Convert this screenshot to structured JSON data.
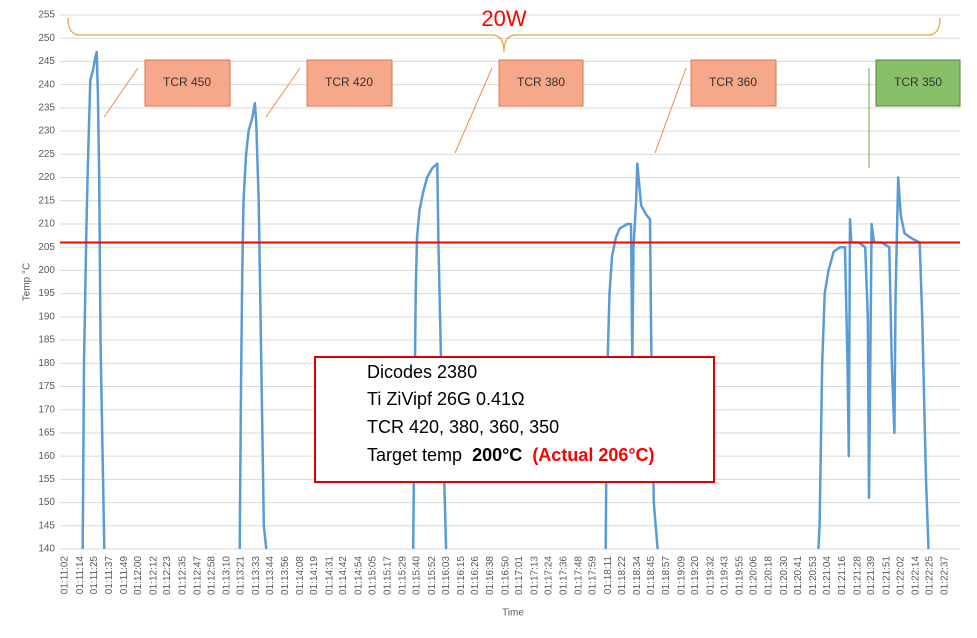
{
  "chart_data": {
    "type": "line",
    "ylabel": "Temp °C",
    "xlabel": "Time",
    "ylim": [
      140,
      255
    ],
    "yticks": [
      140,
      145,
      150,
      155,
      160,
      165,
      170,
      175,
      180,
      185,
      190,
      195,
      200,
      205,
      210,
      215,
      220,
      225,
      230,
      235,
      240,
      245,
      250,
      255
    ],
    "xlim": [
      "01:11:02",
      "01:22:37"
    ],
    "xticks": [
      "01:11:02",
      "01:11:14",
      "01:11:25",
      "01:11:37",
      "01:11:49",
      "01:12:00",
      "01:12:12",
      "01:12:23",
      "01:12:35",
      "01:12:47",
      "01:12:58",
      "01:13:10",
      "01:13:21",
      "01:13:33",
      "01:13:44",
      "01:13:56",
      "01:14:08",
      "01:14:19",
      "01:14:31",
      "01:14:42",
      "01:14:54",
      "01:15:05",
      "01:15:17",
      "01:15:29",
      "01:15:40",
      "01:15:52",
      "01:16:03",
      "01:16:15",
      "01:16:26",
      "01:16:38",
      "01:16:50",
      "01:17:01",
      "01:17:13",
      "01:17:24",
      "01:17:36",
      "01:17:48",
      "01:17:59",
      "01:18:11",
      "01:18:22",
      "01:18:34",
      "01:18:45",
      "01:18:57",
      "01:19:09",
      "01:19:20",
      "01:19:32",
      "01:19:43",
      "01:19:55",
      "01:20:06",
      "01:20:18",
      "01:20:30",
      "01:20:41",
      "01:20:53",
      "01:21:04",
      "01:21:16",
      "01:21:28",
      "01:21:39",
      "01:21:51",
      "01:22:02",
      "01:22:14",
      "01:22:25",
      "01:22:37"
    ],
    "grid": true,
    "series": [
      {
        "color": "#5b9bd5",
        "x": [
          "01:11:16",
          "01:11:17",
          "01:11:19",
          "01:11:20",
          "01:11:21",
          "01:11:22",
          "01:11:24",
          "01:11:26",
          "01:11:27",
          "01:11:28",
          "01:11:29",
          "01:11:30",
          "01:11:33",
          "01:12:30",
          "01:13:20",
          "01:13:21",
          "01:13:22",
          "01:13:23",
          "01:13:25",
          "01:13:27",
          "01:13:30",
          "01:13:32",
          "01:13:33",
          "01:13:35",
          "01:13:37",
          "01:13:39",
          "01:13:41",
          "01:14:30",
          "01:15:37",
          "01:15:38",
          "01:15:39",
          "01:15:40",
          "01:15:42",
          "01:15:45",
          "01:15:48",
          "01:15:52",
          "01:15:56",
          "01:15:57",
          "01:15:59",
          "01:16:01",
          "01:16:03",
          "01:17:00",
          "01:18:09",
          "01:18:10",
          "01:18:12",
          "01:18:14",
          "01:18:17",
          "01:18:20",
          "01:18:26",
          "01:18:29",
          "01:18:30",
          "01:18:31",
          "01:18:33",
          "01:18:34",
          "01:18:35",
          "01:18:37",
          "01:18:41",
          "01:18:44",
          "01:18:45",
          "01:18:47",
          "01:18:50",
          "01:20:00",
          "01:20:57",
          "01:20:58",
          "01:21:00",
          "01:21:02",
          "01:21:05",
          "01:21:09",
          "01:21:14",
          "01:21:18",
          "01:21:20",
          "01:21:21",
          "01:21:22",
          "01:21:23",
          "01:21:29",
          "01:21:34",
          "01:21:36",
          "01:21:37",
          "01:21:39",
          "01:21:41",
          "01:21:47",
          "01:21:53",
          "01:21:55",
          "01:21:57",
          "01:21:58",
          "01:22:00",
          "01:22:02",
          "01:22:05",
          "01:22:10",
          "01:22:17",
          "01:22:19",
          "01:22:22",
          "01:22:24"
        ],
        "values": [
          140,
          180,
          210,
          222,
          232,
          241,
          243,
          246,
          247,
          238,
          220,
          185,
          140,
          null,
          140,
          175,
          200,
          215,
          225,
          230,
          233,
          236,
          232,
          215,
          180,
          145,
          140,
          null,
          140,
          170,
          195,
          207,
          213,
          217,
          220,
          222,
          223,
          205,
          180,
          160,
          140,
          null,
          140,
          175,
          195,
          203,
          207,
          209,
          210,
          210,
          180,
          205,
          215,
          223,
          220,
          214,
          212,
          211,
          185,
          150,
          140,
          null,
          140,
          145,
          180,
          195,
          200,
          204,
          205,
          205,
          180,
          160,
          211,
          206,
          206,
          205,
          190,
          151,
          210,
          206,
          206,
          205,
          180,
          165,
          195,
          220,
          212,
          208,
          207,
          206,
          190,
          155,
          140
        ]
      }
    ],
    "reference_line": {
      "value": 206,
      "color": "#ff0000"
    },
    "annotations": {
      "power": "20W",
      "tcr_labels": [
        "TCR 450",
        "TCR 420",
        "TCR 380",
        "TCR 360",
        "TCR 350"
      ],
      "note_lines": [
        "Dicodes 2380",
        "Ti ZiVipf 26G 0.41Ω",
        "TCR 420, 380, 360, 350"
      ],
      "target": {
        "text": "Target temp",
        "bold": "200°C",
        "actual": "(Actual 206°C)"
      }
    }
  }
}
